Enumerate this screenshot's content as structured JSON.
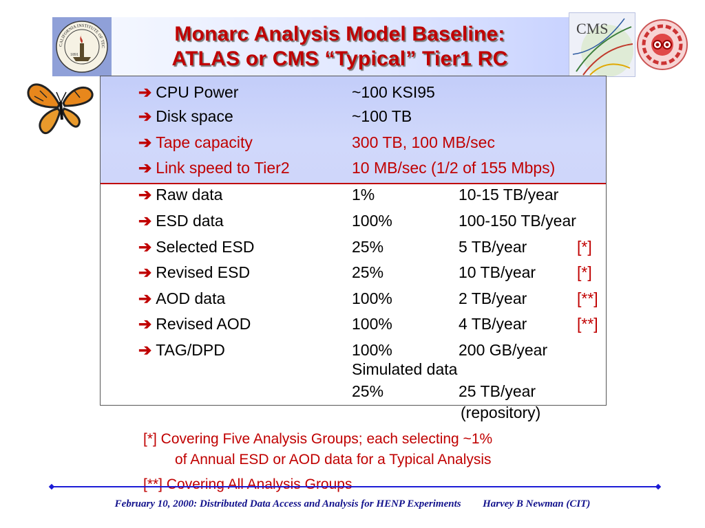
{
  "title": {
    "line1": "Monarc Analysis Model Baseline:",
    "line2": "ATLAS or CMS “Typical” Tier1 RC"
  },
  "logos": {
    "caltech_text": "CALIFORNIA INSTITUTE OF TECHNOLOGY",
    "caltech_year": "1891",
    "cms_text": "CMS"
  },
  "colors": {
    "title_red": "#c00000",
    "box_blue": "#c3cdf9",
    "footer_blue": "#12128c",
    "line_blue": "#1b1bd6"
  },
  "arrow_glyph": "➔",
  "rows": [
    {
      "label": "CPU Power",
      "c1": "~100 KSI95",
      "c2": "",
      "c3": ""
    },
    {
      "label": "Disk space",
      "c1": "~100 TB",
      "c2": "",
      "c3": ""
    },
    {
      "label": "Tape capacity",
      "c1": "300 TB, 100 MB/sec",
      "c2": "",
      "c3": ""
    },
    {
      "label": "Link speed to Tier2",
      "c1": "10 MB/sec (1/2 of 155 Mbps)",
      "c2": "",
      "c3": ""
    },
    {
      "label": "Raw data",
      "c1": "1%",
      "c2": "10-15 TB/year",
      "c3": ""
    },
    {
      "label": "ESD data",
      "c1": "100%",
      "c2": "100-150 TB/year",
      "c3": ""
    },
    {
      "label": "Selected ESD",
      "c1": "25%",
      "c2": "5 TB/year",
      "c3": "[*]"
    },
    {
      "label": "Revised ESD",
      "c1": "25%",
      "c2": "10 TB/year",
      "c3": "[*]"
    },
    {
      "label": "AOD data",
      "c1": "100%",
      "c2": "2 TB/year",
      "c3": "[**]"
    },
    {
      "label": "Revised AOD",
      "c1": "100%",
      "c2": "4 TB/year",
      "c3": "[**]"
    },
    {
      "label": "TAG/DPD",
      "c1": "100%",
      "c2": "200 GB/year",
      "c3": ""
    }
  ],
  "simulated": {
    "heading": "Simulated data",
    "c1": "25%",
    "c2": "25 TB/year",
    "c2_note": "(repository)"
  },
  "notes": {
    "n1_line1": "[*]  Covering Five Analysis Groups; each selecting ~1%",
    "n1_line2": "of Annual ESD or AOD data for a Typical Analysis",
    "n2": "[**] Covering All Analysis Groups"
  },
  "footer": {
    "left": "February 10, 2000:  Distributed Data Access and Analysis for HENP Experiments",
    "right": "Harvey B Newman (CIT)"
  }
}
